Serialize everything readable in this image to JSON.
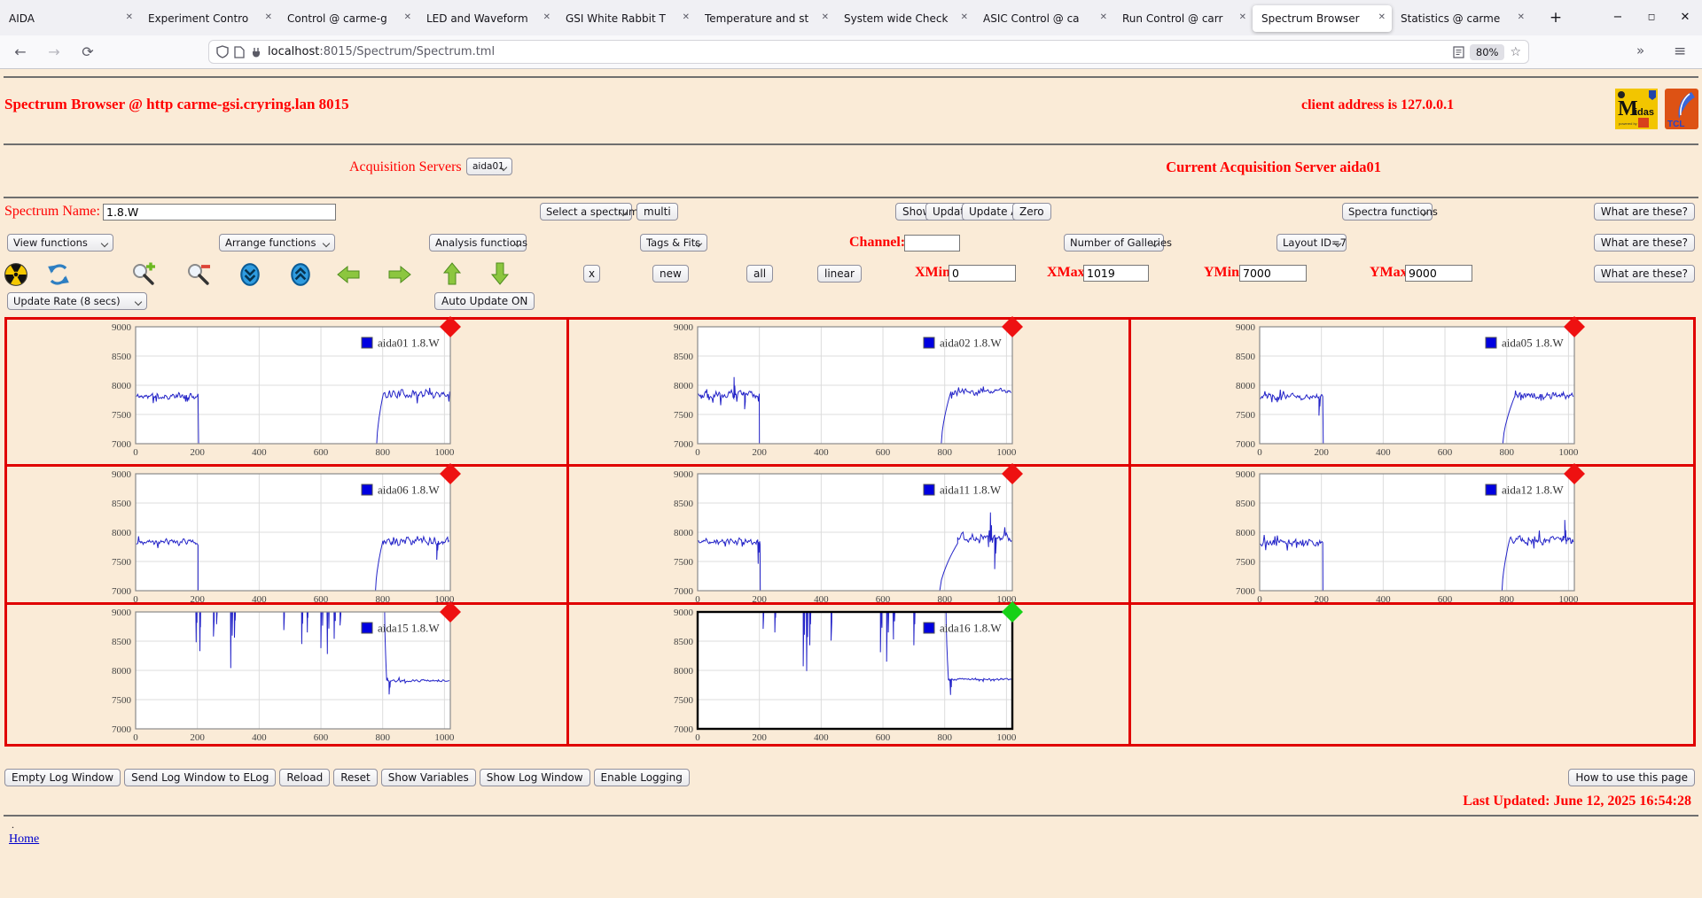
{
  "browser": {
    "tabs": [
      {
        "title": "AIDA",
        "active": false
      },
      {
        "title": "Experiment Contro",
        "active": false
      },
      {
        "title": "Control @ carme-g",
        "active": false
      },
      {
        "title": "LED and Waveform",
        "active": false
      },
      {
        "title": "GSI White Rabbit T",
        "active": false
      },
      {
        "title": "Temperature and st",
        "active": false
      },
      {
        "title": "System wide Check",
        "active": false
      },
      {
        "title": "ASIC Control @ ca",
        "active": false
      },
      {
        "title": "Run Control @ carr",
        "active": false
      },
      {
        "title": "Spectrum Browser",
        "active": true
      },
      {
        "title": "Statistics @ carme",
        "active": false
      }
    ],
    "url_host": "localhost",
    "url_path": ":8015/Spectrum/Spectrum.tml",
    "zoom_badge": "80%",
    "icons": [
      "shield-icon",
      "page-icon",
      "plug-icon",
      "reader-icon",
      "star-icon",
      "back-icon",
      "forward-icon",
      "reload-icon",
      "overflow-icon",
      "menu-icon",
      "new-tab-icon",
      "minimize-icon",
      "maximize-icon",
      "close-icon"
    ]
  },
  "header": {
    "title": "Spectrum Browser @ http carme-gsi.cryring.lan 8015",
    "client_address": "client address is 127.0.0.1",
    "midas_logo_text": "Midas",
    "tcl_logo_text": "TCL"
  },
  "acquisition": {
    "label": "Acquisition Servers",
    "selected": "aida01",
    "current": "Current Acquisition Server aida01"
  },
  "controls": {
    "spectrum_name_label": "Spectrum Name:",
    "spectrum_name_value": "1.8.W",
    "select_spectrum": "Select a spectrum",
    "multi": "multi",
    "show": "Show",
    "update": "Update",
    "update_all": "Update All",
    "zero": "Zero",
    "spectra_functions": "Spectra functions",
    "what_are_these": "What are these?",
    "view_functions": "View functions",
    "arrange_functions": "Arrange functions",
    "analysis_functions": "Analysis functions",
    "tags_fits": "Tags & Fits",
    "channel_label": "Channel:",
    "channel_value": "",
    "number_of_galleries": "Number of Galleries",
    "layout_id": "Layout ID=7",
    "x_btn": "x",
    "new_btn": "new",
    "all_btn": "all",
    "linear_btn": "linear",
    "xmin_label": "XMin",
    "xmin": "0",
    "xmax_label": "XMax",
    "xmax": "1019",
    "ymin_label": "YMin",
    "ymin": "7000",
    "ymax_label": "YMax",
    "ymax": "9000",
    "update_rate": "Update Rate (8 secs)",
    "auto_update": "Auto Update ON",
    "toolbar_icons": [
      "radiation-icon",
      "refresh-icon",
      "zoom-in-icon",
      "zoom-out-icon",
      "scroll-down-icon",
      "scroll-up-icon",
      "arrow-left-icon",
      "arrow-right-icon",
      "arrow-up-icon",
      "arrow-down-icon"
    ]
  },
  "colors": {
    "page_bg": "#faebd7",
    "accent_red": "#ff0000",
    "grid_border": "#e00000",
    "line_blue": "#2424c8",
    "legend_blue": "#0000e0",
    "marker_red": "#ee1111",
    "marker_green": "#17d117"
  },
  "gallery": {
    "rows": 3,
    "cols": 3,
    "empty_cells": [
      8
    ]
  },
  "chart_data": [
    {
      "type": "line",
      "title": "aida01 1.8.W",
      "line_color": "#2424c8",
      "legend_color": "#0000e0",
      "marker_color": "#ee1111",
      "selected": false,
      "xlim": [
        0,
        1019
      ],
      "ylim": [
        7000,
        9000
      ],
      "xticks": [
        0,
        200,
        400,
        600,
        800,
        1000
      ],
      "yticks": [
        7000,
        7500,
        8000,
        8500,
        9000
      ],
      "seed": 11,
      "segments": [
        {
          "kind": "noise",
          "x0": 2,
          "x1": 204,
          "base": 7810,
          "amp": 70
        },
        {
          "kind": "flat",
          "x0": 204,
          "x1": 780,
          "base": 6930
        },
        {
          "kind": "ramp",
          "x0": 780,
          "x1": 802,
          "from": 6930,
          "to": 7850
        },
        {
          "kind": "noise",
          "x0": 802,
          "x1": 1017,
          "base": 7855,
          "amp": 85
        }
      ]
    },
    {
      "type": "line",
      "title": "aida02 1.8.W",
      "line_color": "#2424c8",
      "legend_color": "#0000e0",
      "marker_color": "#ee1111",
      "selected": false,
      "xlim": [
        0,
        1019
      ],
      "ylim": [
        7000,
        9000
      ],
      "xticks": [
        0,
        200,
        400,
        600,
        800,
        1000
      ],
      "yticks": [
        7000,
        7500,
        8000,
        8500,
        9000
      ],
      "seed": 22,
      "segments": [
        {
          "kind": "noise",
          "x0": 2,
          "x1": 200,
          "base": 7845,
          "amp": 80,
          "spikes": [
            {
              "x": 118,
              "y": 8140,
              "w": 4
            },
            {
              "x": 152,
              "y": 7590,
              "w": 4
            }
          ]
        },
        {
          "kind": "flat",
          "x0": 200,
          "x1": 788,
          "base": 6930
        },
        {
          "kind": "ramp",
          "x0": 788,
          "x1": 820,
          "from": 6930,
          "to": 7890
        },
        {
          "kind": "noise",
          "x0": 820,
          "x1": 1017,
          "base": 7895,
          "amp": 75
        }
      ]
    },
    {
      "type": "line",
      "title": "aida05 1.8.W",
      "line_color": "#2424c8",
      "legend_color": "#0000e0",
      "marker_color": "#ee1111",
      "selected": false,
      "xlim": [
        0,
        1019
      ],
      "ylim": [
        7000,
        9000
      ],
      "xticks": [
        0,
        200,
        400,
        600,
        800,
        1000
      ],
      "yticks": [
        7000,
        7500,
        8000,
        8500,
        9000
      ],
      "seed": 35,
      "segments": [
        {
          "kind": "noise",
          "x0": 2,
          "x1": 206,
          "base": 7800,
          "amp": 68,
          "spikes": [
            {
              "x": 192,
              "y": 7480,
              "w": 5
            }
          ]
        },
        {
          "kind": "flat",
          "x0": 206,
          "x1": 786,
          "base": 6930
        },
        {
          "kind": "ramp",
          "x0": 786,
          "x1": 826,
          "from": 6930,
          "to": 7810
        },
        {
          "kind": "noise",
          "x0": 826,
          "x1": 1017,
          "base": 7830,
          "amp": 75
        }
      ]
    },
    {
      "type": "line",
      "title": "aida06 1.8.W",
      "line_color": "#2424c8",
      "legend_color": "#0000e0",
      "marker_color": "#ee1111",
      "selected": false,
      "xlim": [
        0,
        1019
      ],
      "ylim": [
        7000,
        9000
      ],
      "xticks": [
        0,
        200,
        400,
        600,
        800,
        1000
      ],
      "yticks": [
        7000,
        7500,
        8000,
        8500,
        9000
      ],
      "seed": 46,
      "segments": [
        {
          "kind": "noise",
          "x0": 2,
          "x1": 202,
          "base": 7830,
          "amp": 62
        },
        {
          "kind": "flat",
          "x0": 202,
          "x1": 776,
          "base": 6930
        },
        {
          "kind": "ramp",
          "x0": 776,
          "x1": 800,
          "from": 6930,
          "to": 7840
        },
        {
          "kind": "noise",
          "x0": 800,
          "x1": 1017,
          "base": 7850,
          "amp": 85,
          "spikes": [
            {
              "x": 975,
              "y": 7530,
              "w": 5
            }
          ]
        }
      ]
    },
    {
      "type": "line",
      "title": "aida11 1.8.W",
      "line_color": "#2424c8",
      "legend_color": "#0000e0",
      "marker_color": "#ee1111",
      "selected": false,
      "xlim": [
        0,
        1019
      ],
      "ylim": [
        7000,
        9000
      ],
      "xticks": [
        0,
        200,
        400,
        600,
        800,
        1000
      ],
      "yticks": [
        7000,
        7500,
        8000,
        8500,
        9000
      ],
      "seed": 57,
      "segments": [
        {
          "kind": "noise",
          "x0": 2,
          "x1": 203,
          "base": 7845,
          "amp": 68,
          "spikes": [
            {
              "x": 196,
              "y": 7460,
              "w": 5
            }
          ]
        },
        {
          "kind": "flat",
          "x0": 203,
          "x1": 782,
          "base": 6930
        },
        {
          "kind": "ramp",
          "x0": 782,
          "x1": 842,
          "from": 6930,
          "to": 7810
        },
        {
          "kind": "noise",
          "x0": 842,
          "x1": 1017,
          "base": 7900,
          "amp": 115,
          "spikes": [
            {
              "x": 948,
              "y": 8340,
              "w": 6
            },
            {
              "x": 962,
              "y": 7370,
              "w": 5
            }
          ]
        }
      ]
    },
    {
      "type": "line",
      "title": "aida12 1.8.W",
      "line_color": "#2424c8",
      "legend_color": "#0000e0",
      "marker_color": "#ee1111",
      "selected": false,
      "xlim": [
        0,
        1019
      ],
      "ylim": [
        7000,
        9000
      ],
      "xticks": [
        0,
        200,
        400,
        600,
        800,
        1000
      ],
      "yticks": [
        7000,
        7500,
        8000,
        8500,
        9000
      ],
      "seed": 68,
      "segments": [
        {
          "kind": "noise",
          "x0": 2,
          "x1": 205,
          "base": 7815,
          "amp": 68
        },
        {
          "kind": "flat",
          "x0": 205,
          "x1": 784,
          "base": 6930
        },
        {
          "kind": "ramp",
          "x0": 784,
          "x1": 808,
          "from": 6930,
          "to": 7845
        },
        {
          "kind": "noise",
          "x0": 808,
          "x1": 1017,
          "base": 7860,
          "amp": 90,
          "spikes": [
            {
              "x": 988,
              "y": 8210,
              "w": 5
            }
          ]
        }
      ]
    },
    {
      "type": "line",
      "title": "aida15 1.8.W",
      "line_color": "#2424c8",
      "legend_color": "#0000e0",
      "marker_color": "#ee1111",
      "selected": false,
      "xlim": [
        0,
        1019
      ],
      "ylim": [
        7000,
        9000
      ],
      "xticks": [
        0,
        200,
        400,
        600,
        800,
        1000
      ],
      "yticks": [
        7000,
        7500,
        8000,
        8500,
        9000
      ],
      "seed": 79,
      "segments": [
        {
          "kind": "top",
          "x0": 2,
          "x1": 806,
          "base": 9150,
          "amp": 45,
          "spikes": [
            {
              "x": 196,
              "y": 8480,
              "w": 4
            },
            {
              "x": 208,
              "y": 8330,
              "w": 3
            },
            {
              "x": 252,
              "y": 8580,
              "w": 4
            },
            {
              "x": 262,
              "y": 8790,
              "w": 3
            },
            {
              "x": 308,
              "y": 8040,
              "w": 8
            },
            {
              "x": 320,
              "y": 8560,
              "w": 4
            },
            {
              "x": 480,
              "y": 8690,
              "w": 3
            },
            {
              "x": 538,
              "y": 8450,
              "w": 4
            },
            {
              "x": 556,
              "y": 8650,
              "w": 3
            },
            {
              "x": 600,
              "y": 8380,
              "w": 9
            },
            {
              "x": 621,
              "y": 8280,
              "w": 8
            },
            {
              "x": 643,
              "y": 8540,
              "w": 6
            },
            {
              "x": 662,
              "y": 8770,
              "w": 4
            }
          ]
        },
        {
          "kind": "ramp",
          "x0": 806,
          "x1": 813,
          "from": 9150,
          "to": 7830
        },
        {
          "kind": "noise",
          "x0": 813,
          "x1": 1017,
          "base": 7822,
          "amp": 25,
          "spikes": [
            {
              "x": 821,
              "y": 7590,
              "w": 4
            }
          ]
        }
      ]
    },
    {
      "type": "line",
      "title": "aida16 1.8.W",
      "line_color": "#2424c8",
      "legend_color": "#0000e0",
      "marker_color": "#17d117",
      "selected": true,
      "xlim": [
        0,
        1019
      ],
      "ylim": [
        7000,
        9000
      ],
      "xticks": [
        0,
        200,
        400,
        600,
        800,
        1000
      ],
      "yticks": [
        7000,
        7500,
        8000,
        8500,
        9000
      ],
      "seed": 93,
      "segments": [
        {
          "kind": "top",
          "x0": 2,
          "x1": 804,
          "base": 9150,
          "amp": 45,
          "spikes": [
            {
              "x": 212,
              "y": 8710,
              "w": 3
            },
            {
              "x": 250,
              "y": 8650,
              "w": 4
            },
            {
              "x": 342,
              "y": 8070,
              "w": 6
            },
            {
              "x": 353,
              "y": 7990,
              "w": 5
            },
            {
              "x": 363,
              "y": 8430,
              "w": 4
            },
            {
              "x": 432,
              "y": 8510,
              "w": 4
            },
            {
              "x": 592,
              "y": 8310,
              "w": 8
            },
            {
              "x": 612,
              "y": 8150,
              "w": 9
            },
            {
              "x": 634,
              "y": 8530,
              "w": 6
            },
            {
              "x": 700,
              "y": 8430,
              "w": 5
            }
          ]
        },
        {
          "kind": "ramp",
          "x0": 804,
          "x1": 812,
          "from": 9150,
          "to": 7855
        },
        {
          "kind": "noise",
          "x0": 812,
          "x1": 1017,
          "base": 7848,
          "amp": 20,
          "spikes": [
            {
              "x": 819,
              "y": 7580,
              "w": 4
            }
          ]
        }
      ]
    }
  ],
  "footer": {
    "buttons": [
      "Empty Log Window",
      "Send Log Window to ELog",
      "Reload",
      "Reset",
      "Show Variables",
      "Show Log Window",
      "Enable Logging"
    ],
    "help_button": "How to use this page",
    "last_updated": "Last Updated: June 12, 2025 16:54:28",
    "dot": ".",
    "home": "Home"
  }
}
